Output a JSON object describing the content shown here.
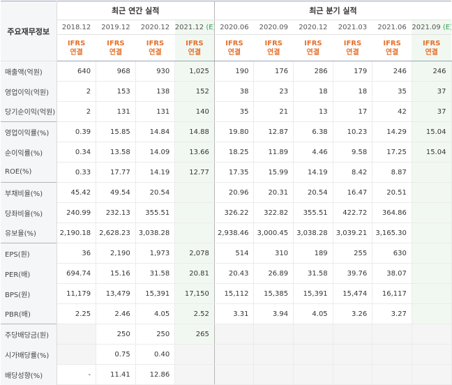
{
  "corner_label": "주요재무정보",
  "annual_title": "최근 연간 실적",
  "quarterly_title": "최근 분기 실적",
  "ifrs_top": "IFRS",
  "ifrs_bottom": "연결",
  "annual_periods": [
    "2018.12",
    "2019.12",
    "2020.12",
    "2021.12"
  ],
  "annual_estimate_mark": "(E)",
  "quarterly_periods": [
    "2020.06",
    "2020.09",
    "2020.12",
    "2021.03",
    "2021.06",
    "2021.09"
  ],
  "quarterly_estimate_mark": "(E)",
  "rows": [
    {
      "label": "매출액(억원)",
      "values": [
        "640",
        "968",
        "930",
        "1,025",
        "190",
        "176",
        "286",
        "179",
        "246",
        "246"
      ]
    },
    {
      "label": "영업이익(억원)",
      "values": [
        "2",
        "153",
        "138",
        "152",
        "38",
        "23",
        "18",
        "18",
        "35",
        "37"
      ]
    },
    {
      "label": "당기순이익(억원)",
      "values": [
        "2",
        "131",
        "131",
        "140",
        "35",
        "21",
        "13",
        "17",
        "42",
        "37"
      ]
    },
    {
      "label": "영업이익률(%)",
      "values": [
        "0.39",
        "15.85",
        "14.84",
        "14.88",
        "19.80",
        "12.87",
        "6.38",
        "10.23",
        "14.29",
        "15.04"
      ]
    },
    {
      "label": "순이익률(%)",
      "values": [
        "0.34",
        "13.58",
        "14.09",
        "13.66",
        "18.25",
        "11.89",
        "4.46",
        "9.58",
        "17.25",
        "15.04"
      ]
    },
    {
      "label": "ROE(%)",
      "values": [
        "0.33",
        "17.77",
        "14.19",
        "12.77",
        "17.35",
        "15.99",
        "14.19",
        "8.42",
        "8.87",
        ""
      ]
    },
    {
      "label": "부채비율(%)",
      "values": [
        "45.42",
        "49.54",
        "20.54",
        "",
        "20.96",
        "20.31",
        "20.54",
        "16.47",
        "20.51",
        ""
      ]
    },
    {
      "label": "당좌비율(%)",
      "values": [
        "240.99",
        "232.13",
        "355.51",
        "",
        "326.22",
        "322.82",
        "355.51",
        "422.72",
        "364.86",
        ""
      ]
    },
    {
      "label": "유보율(%)",
      "values": [
        "2,190.18",
        "2,628.23",
        "3,038.28",
        "",
        "2,938.46",
        "3,000.45",
        "3,038.28",
        "3,039.21",
        "3,165.30",
        ""
      ]
    },
    {
      "label": "EPS(원)",
      "values": [
        "36",
        "2,190",
        "1,973",
        "2,078",
        "514",
        "310",
        "189",
        "255",
        "630",
        ""
      ]
    },
    {
      "label": "PER(배)",
      "values": [
        "694.74",
        "15.16",
        "31.58",
        "20.81",
        "20.43",
        "26.89",
        "31.58",
        "39.76",
        "38.07",
        ""
      ]
    },
    {
      "label": "BPS(원)",
      "values": [
        "11,179",
        "13,479",
        "15,391",
        "17,150",
        "15,112",
        "15,385",
        "15,391",
        "15,474",
        "16,117",
        ""
      ]
    },
    {
      "label": "PBR(배)",
      "values": [
        "2.25",
        "2.46",
        "4.05",
        "2.52",
        "3.31",
        "3.94",
        "4.05",
        "3.26",
        "3.27",
        ""
      ]
    },
    {
      "label": "주당배당금(원)",
      "values": [
        "",
        "250",
        "250",
        "265",
        "",
        "",
        "",
        "",
        "",
        ""
      ]
    },
    {
      "label": "시가배당률(%)",
      "values": [
        "",
        "0.75",
        "0.40",
        "",
        "",
        "",
        "",
        "",
        "",
        ""
      ]
    },
    {
      "label": "배당성향(%)",
      "values": [
        "-",
        "11.41",
        "12.86",
        "",
        "",
        "",
        "",
        "",
        "",
        ""
      ]
    }
  ],
  "colors": {
    "estimate_bg": "#f1f8f1",
    "ifrs": "#e5702c",
    "estimate_mark": "#2f9f4f"
  }
}
